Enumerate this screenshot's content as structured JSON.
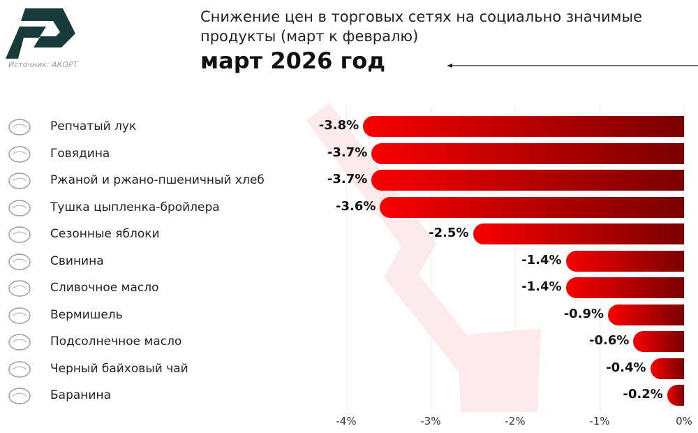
{
  "header": {
    "title": "Снижение цен в торговых сетях на социально значимые продукты (март к февралю)",
    "year": "март 2026 год",
    "source": "Источник: АКОРТ",
    "logo_text": "АКОРТ"
  },
  "colors": {
    "bar_start": "#f80000",
    "bar_end": "#7a0000",
    "logo": "#173b3b"
  },
  "chart_data": {
    "type": "bar",
    "orientation": "horizontal",
    "title": "Снижение цен в торговых сетях на социально значимые продукты (март к февралю)",
    "subtitle": "март 2026 год",
    "categories": [
      "Репчатый лук",
      "Говядина",
      "Ржаной и ржано-пшеничный хлеб",
      "Тушка цыпленка-бройлера",
      "Сезонные яблоки",
      "Свинина",
      "Сливочное масло",
      "Вермишель",
      "Подсолнечное масло",
      "Черный байховый чай",
      "Баранина"
    ],
    "values": [
      -3.8,
      -3.7,
      -3.7,
      -3.6,
      -2.5,
      -1.4,
      -1.4,
      -0.9,
      -0.6,
      -0.4,
      -0.2
    ],
    "value_labels": [
      "-3.8%",
      "-3.7%",
      "-3.7%",
      "-3.6%",
      "-2.5%",
      "-1.4%",
      "-1.4%",
      "-0.9%",
      "-0.6%",
      "-0.4%",
      "-0.2%"
    ],
    "icons": [
      "onion-icon",
      "beef-icon",
      "bread-icon",
      "chicken-icon",
      "apple-icon",
      "pork-icon",
      "butter-icon",
      "noodles-icon",
      "oil-bottle-icon",
      "tea-cup-icon",
      "sheep-icon"
    ],
    "xticks": [
      -4,
      -3,
      -2,
      -1,
      0
    ],
    "xtick_labels": [
      "-4%",
      "-3%",
      "-2%",
      "-1%",
      "0%"
    ],
    "xlim": [
      -4,
      0
    ],
    "grid": true
  }
}
